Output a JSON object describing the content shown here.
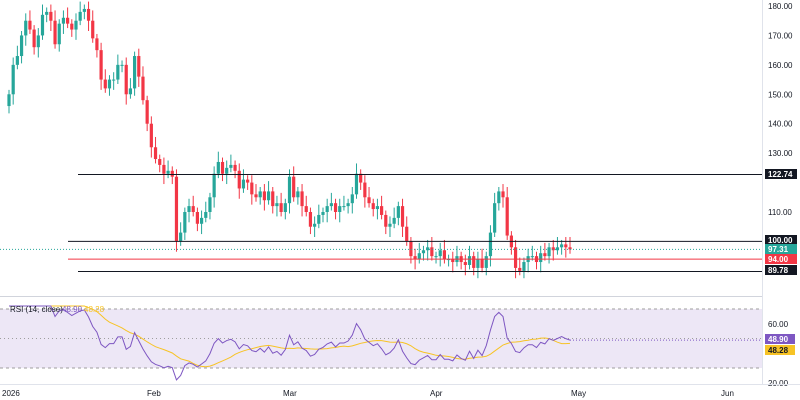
{
  "price_axis": {
    "ticks": [
      "180.00",
      "170.00",
      "160.00",
      "150.00",
      "140.00",
      "130.00",
      "110.00"
    ],
    "tick_values": [
      180,
      170,
      160,
      150,
      140,
      130,
      110
    ]
  },
  "rsi_axis": {
    "ticks": [
      "60.00",
      "20.00"
    ],
    "tick_values": [
      60,
      20
    ]
  },
  "x_axis": {
    "labels": [
      "2026",
      "Feb",
      "Mar",
      "Apr",
      "May",
      "Jun"
    ]
  },
  "levels": {
    "l1": {
      "label": "122.74",
      "value": 122.74
    },
    "l2": {
      "label": "100.00",
      "value": 100.0
    },
    "l3": {
      "label": "94.00",
      "value": 94.0
    },
    "l4": {
      "label": "89.78",
      "value": 89.78
    }
  },
  "last_price": {
    "label": "97.31",
    "value": 97.31
  },
  "rsi": {
    "legend_name": "RSI (14, close)",
    "value_label": "48.90",
    "ma_label": "48.28",
    "value": 48.9,
    "ma": 48.28,
    "upper_band": 70,
    "lower_band": 30
  },
  "colors": {
    "up": "#26a69a",
    "down": "#f23645",
    "rsi": "#7e57c2",
    "rsi_ma": "#f7c325",
    "rsi_band_bg": "#ede7f6",
    "level_line": "#131722",
    "support_line": "#f23645",
    "last_price_bg": "#26a69a",
    "rsi_tag_bg": "#7e57c2",
    "ma_tag_bg": "#f7c325"
  },
  "chart_data": {
    "type": "candlestick",
    "price_series": {
      "x": [
        1,
        2,
        3,
        4,
        5,
        6,
        7,
        8,
        9,
        10,
        11,
        12,
        13,
        14,
        15,
        16,
        17,
        18,
        19,
        20,
        21,
        22,
        23,
        24,
        25,
        26,
        27,
        28,
        29,
        30,
        31,
        32,
        33,
        34,
        35,
        36,
        37,
        38,
        39,
        40,
        41,
        42,
        43,
        44,
        45,
        46,
        47,
        48,
        49,
        50,
        51,
        52,
        53,
        54,
        55,
        56,
        57,
        58,
        59,
        60,
        61,
        62,
        63,
        64,
        65,
        66,
        67,
        68,
        69,
        70,
        71,
        72,
        73,
        74,
        75,
        76,
        77,
        78,
        79,
        80,
        81,
        82,
        83,
        84,
        85,
        86,
        87,
        88,
        89,
        90,
        91,
        92,
        93,
        94,
        95,
        96,
        97,
        98,
        99,
        100,
        101,
        102,
        103,
        104,
        105,
        106,
        107,
        108,
        109,
        110,
        111,
        112,
        113,
        114,
        115,
        116,
        117,
        118,
        119,
        120,
        121,
        122,
        123,
        124,
        125,
        126,
        127,
        128,
        129,
        130,
        131,
        132,
        133,
        134,
        135
      ],
      "close": [
        150,
        160,
        163,
        170,
        175,
        172,
        166,
        170,
        177,
        178,
        175,
        167,
        174,
        176,
        174,
        172,
        175,
        178,
        179,
        175,
        169,
        165,
        155,
        152,
        155,
        155,
        160,
        160,
        150,
        152,
        163,
        156,
        148,
        140,
        132,
        128,
        126,
        123,
        124,
        122,
        100,
        103,
        110,
        112,
        110,
        106,
        108,
        110,
        115,
        123,
        127,
        123,
        125,
        126,
        124,
        118,
        121,
        120,
        116,
        115,
        117,
        114,
        117,
        112,
        113,
        110,
        113,
        122,
        115,
        117,
        112,
        110,
        105,
        106,
        109,
        110,
        112,
        113,
        110,
        112,
        112,
        113,
        116,
        123,
        120,
        115,
        113,
        111,
        112,
        109,
        105,
        106,
        108,
        112,
        105,
        100,
        95,
        94,
        96,
        97,
        98,
        95,
        95,
        97,
        94,
        94,
        93,
        95,
        93,
        92,
        95,
        91,
        94,
        91,
        95,
        103,
        113,
        117,
        115,
        102,
        98,
        91,
        90,
        93,
        95,
        95,
        93,
        96,
        95,
        98,
        97,
        98,
        99,
        98,
        97.3
      ],
      "ylim": [
        82,
        182
      ]
    },
    "rsi_series": {
      "ylim": [
        20,
        72
      ]
    }
  }
}
